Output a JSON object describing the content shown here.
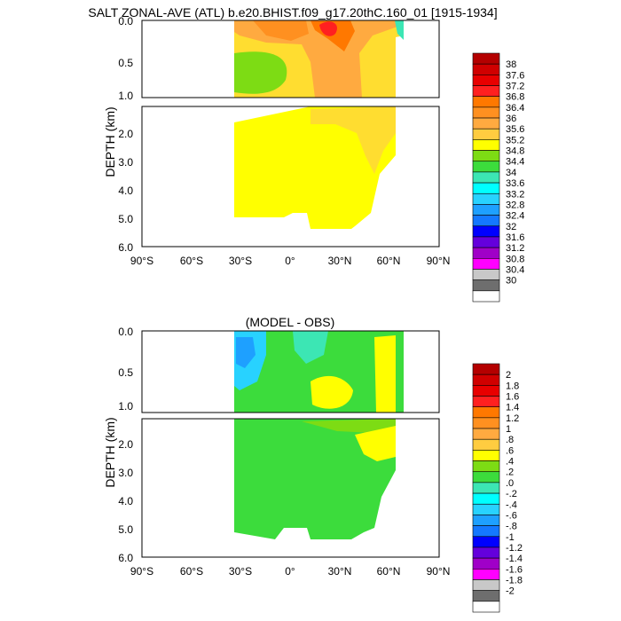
{
  "title": "SALT ZONAL-AVE (ATL) b.e20.BHIST.f09_g17.20thC.160_01 [1915-1934]",
  "diff_title": "(MODEL - OBS)",
  "ylabel": "DEPTH (km)",
  "x_ticks": [
    "90°S",
    "60°S",
    "30°S",
    "0°",
    "30°N",
    "60°N",
    "90°N"
  ],
  "y_ticks_upper": [
    "0.0",
    "0.5",
    "1.0"
  ],
  "y_ticks_lower": [
    "2.0",
    "3.0",
    "4.0",
    "5.0",
    "6.0"
  ],
  "chart_data": [
    {
      "type": "heatmap",
      "title": "SALT ZONAL-AVE (ATL) b.e20.BHIST.f09_g17.20thC.160_01 [1915-1934]",
      "ylabel": "DEPTH (km)",
      "xlim": [
        -90,
        90
      ],
      "ylim_km": [
        0,
        6
      ],
      "colorbar_labels": [
        "38",
        "37.6",
        "37.2",
        "36.8",
        "36.4",
        "36",
        "35.6",
        "35.2",
        "34.8",
        "34.4",
        "34",
        "33.6",
        "33.2",
        "32.8",
        "32.4",
        "32",
        "31.6",
        "31.2",
        "30.8",
        "30.4",
        "30"
      ],
      "colorbar_colors": [
        "#b40000",
        "#d00000",
        "#e80000",
        "#ff2020",
        "#ff7800",
        "#ff9020",
        "#ffaa40",
        "#ffcc40",
        "#ffff00",
        "#7ddc14",
        "#3cdc3c",
        "#3ce6b4",
        "#00ffff",
        "#28d2ff",
        "#1ea0ff",
        "#1478ff",
        "#0000ff",
        "#6400dc",
        "#a000c8",
        "#ff00ff",
        "#c8c8c8",
        "#6e6e6e",
        "#ffffff"
      ]
    },
    {
      "type": "heatmap",
      "title": "(MODEL - OBS)",
      "ylabel": "DEPTH (km)",
      "xlim": [
        -90,
        90
      ],
      "ylim_km": [
        0,
        6
      ],
      "colorbar_labels": [
        "2",
        "1.8",
        "1.6",
        "1.4",
        "1.2",
        "1",
        ".8",
        ".6",
        ".4",
        ".2",
        ".0",
        "-.2",
        "-.4",
        "-.6",
        "-.8",
        "-1",
        "-1.2",
        "-1.4",
        "-1.6",
        "-1.8",
        "-2"
      ],
      "colorbar_colors": [
        "#b40000",
        "#d00000",
        "#e80000",
        "#ff2020",
        "#ff7800",
        "#ff9020",
        "#ffaa40",
        "#ffcc40",
        "#ffff00",
        "#7ddc14",
        "#3cdc3c",
        "#3ce6b4",
        "#00ffff",
        "#28d2ff",
        "#1ea0ff",
        "#1478ff",
        "#0000ff",
        "#6400dc",
        "#a000c8",
        "#ff00ff",
        "#c8c8c8",
        "#6e6e6e",
        "#ffffff"
      ]
    }
  ]
}
